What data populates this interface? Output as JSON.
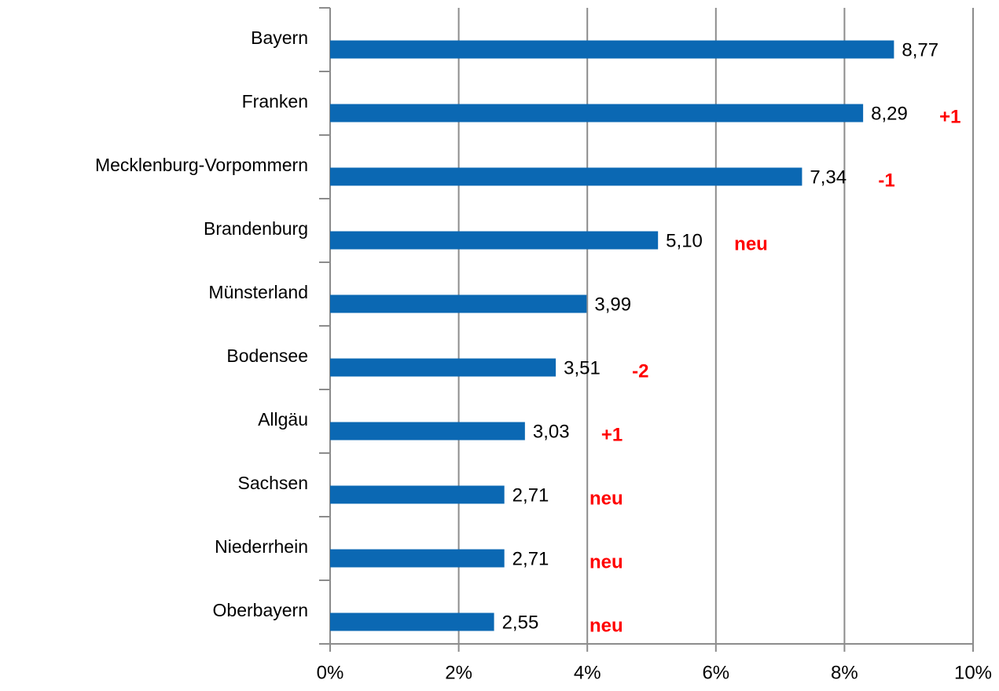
{
  "chart_data": {
    "type": "bar",
    "orientation": "horizontal",
    "categories": [
      "Bayern",
      "Franken",
      "Mecklenburg-Vorpommern",
      "Brandenburg",
      "Münsterland",
      "Bodensee",
      "Allgäu",
      "Sachsen",
      "Niederrhein",
      "Oberbayern"
    ],
    "values": [
      8.77,
      8.29,
      7.34,
      5.1,
      3.99,
      3.51,
      3.03,
      2.71,
      2.71,
      2.55
    ],
    "value_labels": [
      "8,77",
      "8,29",
      "7,34",
      "5,10",
      "3,99",
      "3,51",
      "3,03",
      "2,71",
      "2,71",
      "2,55"
    ],
    "annotations": [
      null,
      "+1",
      "-1",
      "neu",
      null,
      "-2",
      "+1",
      "neu",
      "neu",
      "neu"
    ],
    "color": "#0b68b3",
    "annotation_color": "#ff0000",
    "xlim": [
      0,
      10
    ],
    "xticks": [
      {
        "value": 0,
        "label": "0%"
      },
      {
        "value": 2,
        "label": "2%"
      },
      {
        "value": 4,
        "label": "4%"
      },
      {
        "value": 6,
        "label": "6%"
      },
      {
        "value": 8,
        "label": "8%"
      },
      {
        "value": 10,
        "label": "10%"
      }
    ],
    "grid": true
  }
}
